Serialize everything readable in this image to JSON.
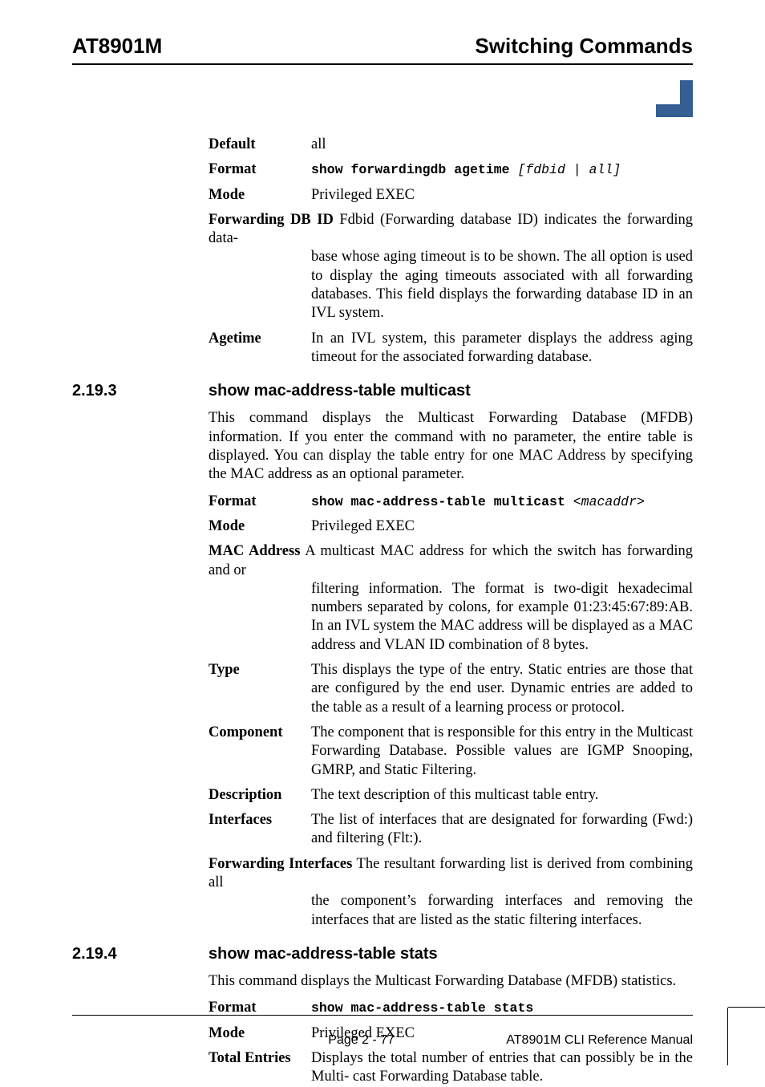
{
  "header": {
    "left": "AT8901M",
    "right": "Switching Commands"
  },
  "colors": {
    "accent": "#355e93",
    "rule": "#000000",
    "bg": "#ffffff",
    "text": "#000000"
  },
  "top_block": {
    "default": {
      "term": "Default",
      "def": "all"
    },
    "format": {
      "term": "Format",
      "cmd": "show forwardingdb agetime ",
      "arg": "[fdbid | all]"
    },
    "mode": {
      "term": "Mode",
      "def": "Privileged EXEC"
    },
    "fdbid": {
      "lead": "Forwarding DB ID",
      "first": "  Fdbid (Forwarding database ID) indicates the forwarding data-",
      "cont": "base whose aging timeout is to be shown. The all option is used to display the aging timeouts associated with all forwarding databases. This field displays the forwarding database ID in an IVL system."
    },
    "agetime": {
      "term": "Agetime",
      "def": "In an IVL system, this parameter displays the address aging timeout for the associated forwarding database."
    }
  },
  "sec1": {
    "num": "2.19.3",
    "title": "show mac-address-table multicast",
    "intro": "This command displays the Multicast Forwarding Database (MFDB) information. If you enter the command with no parameter, the entire table is displayed. You can display the table entry for one MAC Address by specifying the MAC address as an optional parameter.",
    "format": {
      "term": "Format",
      "cmd": "show mac-address-table multicast ",
      "arg": "<macaddr>"
    },
    "mode": {
      "term": "Mode",
      "def": "Privileged EXEC"
    },
    "mac": {
      "lead": "MAC Address",
      "first": "  A multicast MAC address for which the switch has forwarding and or",
      "cont": "filtering information. The format is two-digit hexadecimal numbers separated by colons, for example 01:23:45:67:89:AB. In an IVL system the MAC address will be displayed as a MAC address and VLAN ID combination of 8 bytes."
    },
    "type": {
      "term": "Type",
      "def": "This displays the type of the entry. Static entries are those that are configured by the end user. Dynamic entries are added to the table as a result of a learning process or protocol."
    },
    "component": {
      "term": "Component",
      "def": "The component that is responsible for this entry in the Multicast Forwarding Database. Possible values are IGMP Snooping, GMRP, and Static Filtering."
    },
    "description": {
      "term": "Description",
      "def": "The text description of this multicast table entry."
    },
    "interfaces": {
      "term": "Interfaces",
      "def": "The list of interfaces that are designated for forwarding (Fwd:) and filtering (Flt:)."
    },
    "fwdint": {
      "lead": "Forwarding Interfaces",
      "first": "  The resultant forwarding list is derived from combining all",
      "cont": "the component’s forwarding interfaces and removing the interfaces that are listed as the static filtering interfaces."
    }
  },
  "sec2": {
    "num": "2.19.4",
    "title": "show mac-address-table stats",
    "intro": "This command displays the Multicast Forwarding Database (MFDB) statistics.",
    "format": {
      "term": "Format",
      "cmd": "show mac-address-table stats"
    },
    "mode": {
      "term": "Mode",
      "def": "Privileged EXEC"
    },
    "total": {
      "lead": "Total Entries",
      "first": "Displays the total number of entries that can possibly be in the Multi-",
      "cont": "cast Forwarding Database table."
    }
  },
  "footer": {
    "page": "Page 2 - 77",
    "manual": "AT8901M CLI Reference Manual"
  }
}
